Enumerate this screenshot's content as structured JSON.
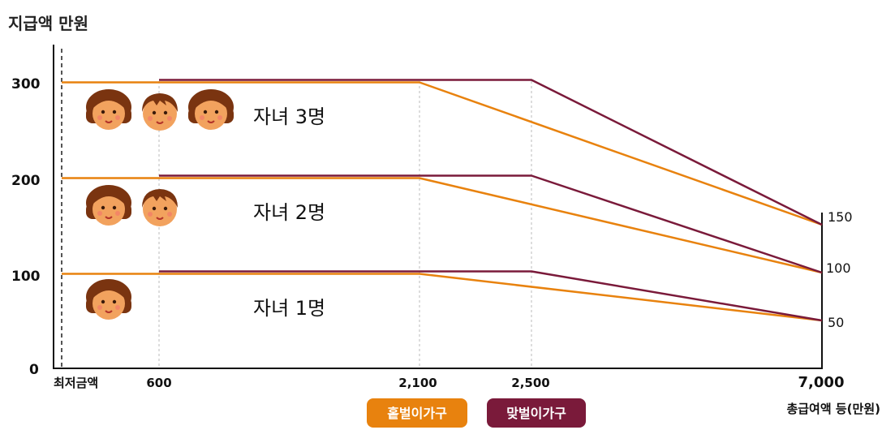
{
  "chart_data": {
    "type": "line",
    "ylabel": "지급액 만원",
    "xlabel": "총급여액 등(만원)",
    "y_ticks": [
      "300",
      "200",
      "100",
      "0"
    ],
    "y_right_ticks": [
      "150",
      "100",
      "50"
    ],
    "x_tick_labels": [
      "최저금액",
      "600",
      "2,100",
      "2,500",
      "7,000"
    ],
    "groups": [
      "자녀 3명",
      "자녀 2명",
      "자녀 1명"
    ],
    "legend": [
      {
        "label": "홑벌이가구",
        "color": "#E8820E"
      },
      {
        "label": "맞벌이가구",
        "color": "#7A1A3A"
      }
    ],
    "series": [
      {
        "name": "홑벌이가구",
        "group": "자녀 3명",
        "color": "#E8820E",
        "x": [
          "최저금액",
          "2,100",
          "7,000"
        ],
        "y": [
          300,
          300,
          150
        ]
      },
      {
        "name": "맞벌이가구",
        "group": "자녀 3명",
        "color": "#7A1A3A",
        "x": [
          "600",
          "2,500",
          "7,000"
        ],
        "y": [
          300,
          300,
          150
        ]
      },
      {
        "name": "홑벌이가구",
        "group": "자녀 2명",
        "color": "#E8820E",
        "x": [
          "최저금액",
          "2,100",
          "7,000"
        ],
        "y": [
          200,
          200,
          100
        ]
      },
      {
        "name": "맞벌이가구",
        "group": "자녀 2명",
        "color": "#7A1A3A",
        "x": [
          "600",
          "2,500",
          "7,000"
        ],
        "y": [
          200,
          200,
          100
        ]
      },
      {
        "name": "홑벌이가구",
        "group": "자녀 1명",
        "color": "#E8820E",
        "x": [
          "최저금액",
          "2,100",
          "7,000"
        ],
        "y": [
          100,
          100,
          50
        ]
      },
      {
        "name": "맞벌이가구",
        "group": "자녀 1명",
        "color": "#7A1A3A",
        "x": [
          "600",
          "2,500",
          "7,000"
        ],
        "y": [
          100,
          100,
          50
        ]
      }
    ],
    "children_icons": [
      3,
      2,
      1
    ]
  }
}
